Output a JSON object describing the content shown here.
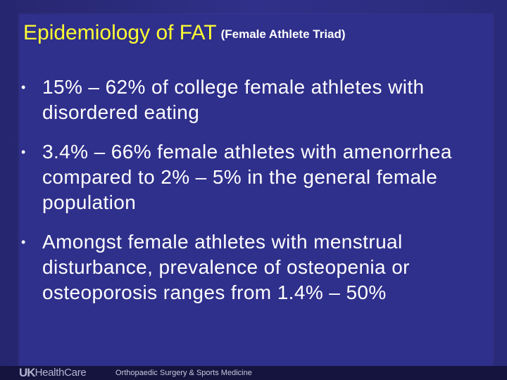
{
  "slide": {
    "title": "Epidemiology of FAT",
    "subtitle": "(Female Athlete Triad)",
    "bullet_symbol": "•",
    "bullets": [
      "15% – 62% of college female athletes with disordered eating",
      "3.4% – 66% female athletes with amenorrhea compared to 2% – 5% in the general female population",
      "Amongst female athletes with menstrual disturbance, prevalence of osteopenia or osteoporosis ranges from 1.4% – 50%"
    ]
  },
  "footer": {
    "logo_uk": "UK",
    "logo_healthcare": "HealthCare",
    "department": "Orthopaedic Surgery & Sports Medicine"
  },
  "colors": {
    "background": "#2f2f8c",
    "title": "#ffff33",
    "text": "#ffffff",
    "footer_bar": "#14143f"
  }
}
